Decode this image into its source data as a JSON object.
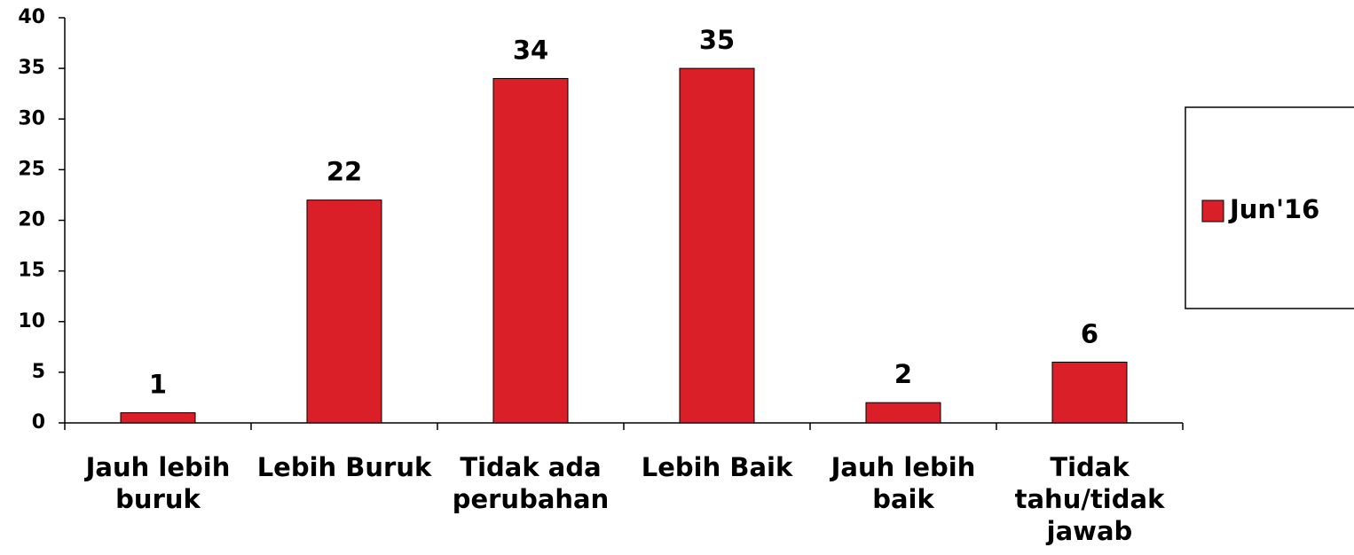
{
  "chart_data": {
    "type": "bar",
    "categories": [
      "Jauh lebih buruk",
      "Lebih Buruk",
      "Tidak ada perubahan",
      "Lebih Baik",
      "Jauh lebih baik",
      "Tidak tahu/tidak jawab"
    ],
    "series": [
      {
        "name": "Jun'16",
        "color": "#da1f28",
        "values": [
          1,
          22,
          34,
          35,
          2,
          6
        ]
      }
    ],
    "ylim": [
      0,
      40
    ],
    "yticks": [
      0,
      5,
      10,
      15,
      20,
      25,
      30,
      35,
      40
    ],
    "legend": "right",
    "grid": false
  }
}
